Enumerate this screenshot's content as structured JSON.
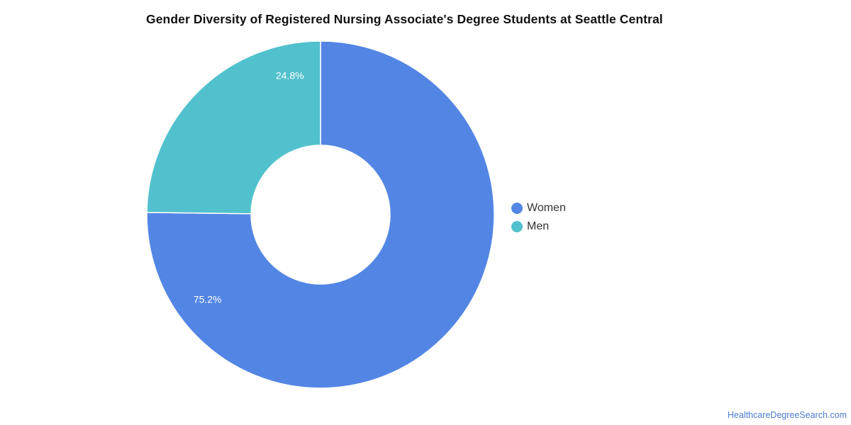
{
  "chart_data": {
    "type": "pie",
    "title": "Gender Diversity of Registered Nursing Associate's Degree Students at Seattle Central",
    "donut": true,
    "categories": [
      "Women",
      "Men"
    ],
    "values": [
      75.2,
      24.8
    ],
    "value_labels": [
      "75.2%",
      "24.8%"
    ],
    "colors": [
      "#5386e4",
      "#51c1cd"
    ],
    "legend": {
      "position": "right",
      "items": [
        {
          "label": "Women",
          "color": "#5386e4"
        },
        {
          "label": "Men",
          "color": "#51c1cd"
        }
      ]
    }
  },
  "watermark": "HealthcareDegreeSearch.com"
}
